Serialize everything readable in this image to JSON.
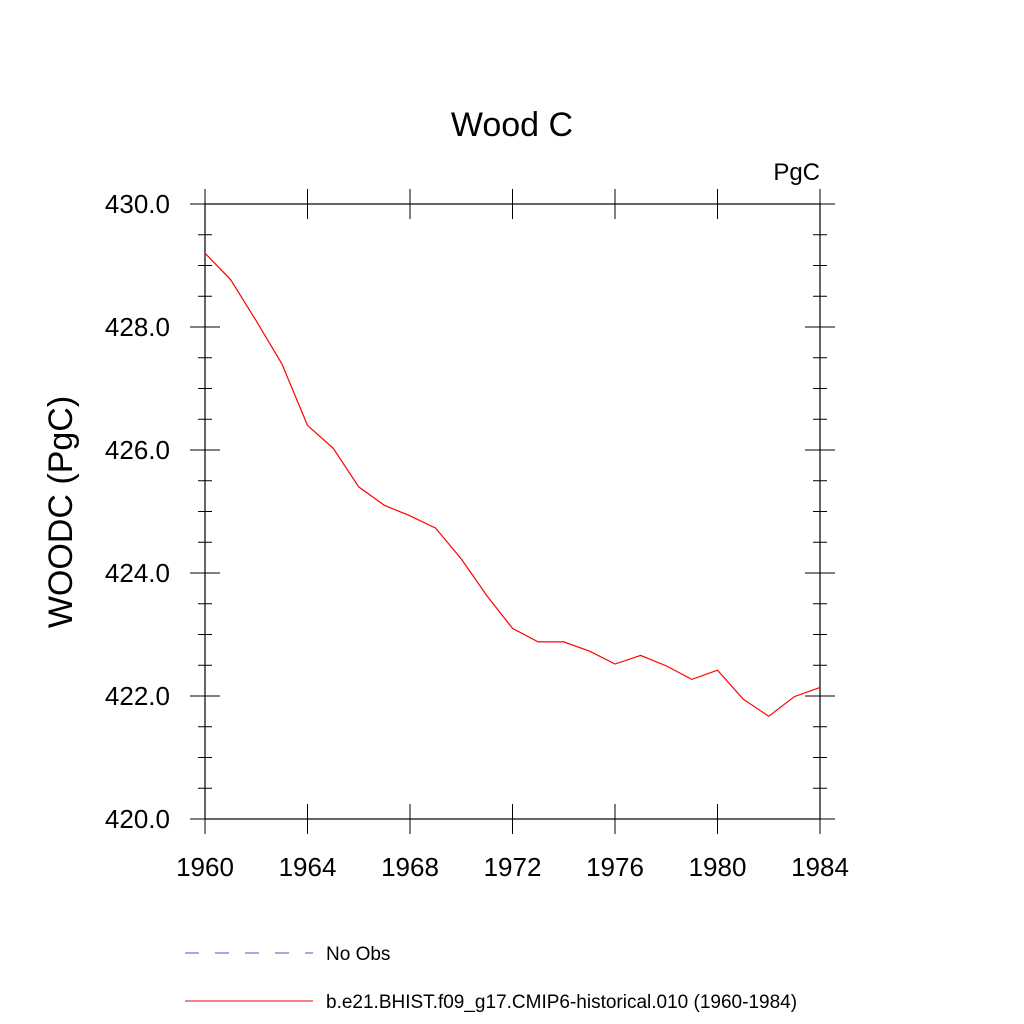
{
  "chart_data": {
    "type": "line",
    "title": "Wood C",
    "units_label": "PgC",
    "xlabel": "",
    "ylabel": "WOODC  (PgC)",
    "xlim": [
      1960,
      1984
    ],
    "ylim": [
      420.0,
      430.0
    ],
    "x_ticks": [
      1960,
      1964,
      1968,
      1972,
      1976,
      1980,
      1984
    ],
    "x_tick_labels": [
      "1960",
      "1964",
      "1968",
      "1972",
      "1976",
      "1980",
      "1984"
    ],
    "y_ticks": [
      420.0,
      422.0,
      424.0,
      426.0,
      428.0,
      430.0
    ],
    "y_tick_labels": [
      "420.0",
      "422.0",
      "424.0",
      "426.0",
      "428.0",
      "430.0"
    ],
    "grid": false,
    "legend_position": "bottom",
    "series": [
      {
        "name": "b.e21.BHIST.f09_g17.CMIP6-historical.010 (1960-1984)",
        "color": "#ff0000",
        "style": "solid",
        "x": [
          1960,
          1961,
          1962,
          1963,
          1964,
          1965,
          1966,
          1967,
          1968,
          1969,
          1970,
          1971,
          1972,
          1973,
          1974,
          1975,
          1976,
          1977,
          1978,
          1979,
          1980,
          1981,
          1982,
          1983,
          1984
        ],
        "y": [
          429.2,
          428.77,
          428.1,
          427.4,
          426.4,
          426.03,
          425.4,
          425.1,
          424.93,
          424.73,
          424.23,
          423.63,
          423.1,
          422.88,
          422.88,
          422.73,
          422.52,
          422.66,
          422.49,
          422.27,
          422.42,
          421.95,
          421.67,
          421.99,
          422.14
        ]
      }
    ],
    "legend": [
      {
        "label": "No Obs",
        "color": "#5050d0",
        "style": "dashed"
      },
      {
        "label": "b.e21.BHIST.f09_g17.CMIP6-historical.010 (1960-1984)",
        "color": "#ff0000",
        "style": "solid"
      }
    ]
  }
}
